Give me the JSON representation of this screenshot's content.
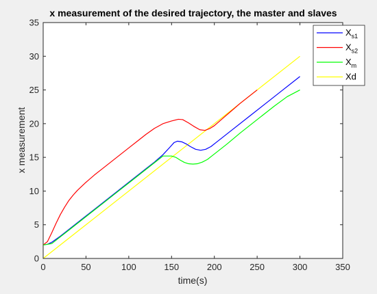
{
  "chart_data": {
    "type": "line",
    "title": "x measurement of the desired trajectory, the master and slaves",
    "xlabel": "time(s)",
    "ylabel": "x measurement",
    "xlim": [
      0,
      350
    ],
    "ylim": [
      0,
      35
    ],
    "xticks": [
      0,
      50,
      100,
      150,
      200,
      250,
      300,
      350
    ],
    "yticks": [
      0,
      5,
      10,
      15,
      20,
      25,
      30,
      35
    ],
    "grid": false,
    "legend_position": "top-right",
    "series": [
      {
        "name": "X_s1",
        "label_main": "X",
        "label_sub": "s1",
        "color": "#0000ff",
        "points": [
          [
            0,
            2
          ],
          [
            5,
            2.1
          ],
          [
            10,
            2.4
          ],
          [
            20,
            3.3
          ],
          [
            30,
            4.3
          ],
          [
            40,
            5.3
          ],
          [
            50,
            6.3
          ],
          [
            60,
            7.3
          ],
          [
            70,
            8.3
          ],
          [
            80,
            9.3
          ],
          [
            90,
            10.3
          ],
          [
            100,
            11.3
          ],
          [
            110,
            12.3
          ],
          [
            120,
            13.3
          ],
          [
            130,
            14.3
          ],
          [
            140,
            15.4
          ],
          [
            148,
            16.5
          ],
          [
            153,
            17.2
          ],
          [
            157,
            17.4
          ],
          [
            162,
            17.3
          ],
          [
            167,
            17
          ],
          [
            172,
            16.6
          ],
          [
            178,
            16.2
          ],
          [
            184,
            16.05
          ],
          [
            190,
            16.2
          ],
          [
            196,
            16.6
          ],
          [
            202,
            17.2
          ],
          [
            210,
            18
          ],
          [
            220,
            19
          ],
          [
            240,
            21
          ],
          [
            260,
            23
          ],
          [
            280,
            25
          ],
          [
            300,
            27
          ]
        ]
      },
      {
        "name": "X_s2",
        "label_main": "X",
        "label_sub": "s2",
        "color": "#ff0000",
        "points": [
          [
            0,
            2
          ],
          [
            5,
            2.5
          ],
          [
            10,
            3.8
          ],
          [
            15,
            5.2
          ],
          [
            20,
            6.5
          ],
          [
            25,
            7.6
          ],
          [
            30,
            8.6
          ],
          [
            35,
            9.4
          ],
          [
            40,
            10.1
          ],
          [
            50,
            11.3
          ],
          [
            60,
            12.4
          ],
          [
            70,
            13.4
          ],
          [
            80,
            14.4
          ],
          [
            90,
            15.4
          ],
          [
            100,
            16.4
          ],
          [
            110,
            17.4
          ],
          [
            120,
            18.4
          ],
          [
            130,
            19.3
          ],
          [
            140,
            20.0
          ],
          [
            150,
            20.4
          ],
          [
            158,
            20.65
          ],
          [
            163,
            20.6
          ],
          [
            170,
            20.1
          ],
          [
            176,
            19.6
          ],
          [
            183,
            19.1
          ],
          [
            189,
            19.0
          ],
          [
            195,
            19.3
          ],
          [
            200,
            19.7
          ],
          [
            210,
            20.8
          ],
          [
            220,
            21.9
          ],
          [
            230,
            23
          ],
          [
            240,
            24
          ],
          [
            250,
            25
          ]
        ]
      },
      {
        "name": "X_m",
        "label_main": "X",
        "label_sub": "m",
        "color": "#00ff00",
        "points": [
          [
            0,
            2
          ],
          [
            10,
            2.2
          ],
          [
            20,
            3.2
          ],
          [
            30,
            4.2
          ],
          [
            40,
            5.2
          ],
          [
            50,
            6.2
          ],
          [
            60,
            7.2
          ],
          [
            70,
            8.2
          ],
          [
            80,
            9.2
          ],
          [
            90,
            10.2
          ],
          [
            100,
            11.2
          ],
          [
            110,
            12.2
          ],
          [
            120,
            13.2
          ],
          [
            130,
            14.2
          ],
          [
            140,
            15.2
          ],
          [
            150,
            15.2
          ],
          [
            155,
            15.0
          ],
          [
            160,
            14.6
          ],
          [
            165,
            14.25
          ],
          [
            170,
            14.05
          ],
          [
            175,
            14.0
          ],
          [
            180,
            14.05
          ],
          [
            186,
            14.3
          ],
          [
            192,
            14.7
          ],
          [
            198,
            15.3
          ],
          [
            205,
            16
          ],
          [
            215,
            17
          ],
          [
            230,
            18.6
          ],
          [
            250,
            20.6
          ],
          [
            270,
            22.6
          ],
          [
            285,
            24
          ],
          [
            300,
            25
          ]
        ]
      },
      {
        "name": "Xd",
        "label_main": "Xd",
        "label_sub": "",
        "color": "#ffff00",
        "points": [
          [
            0,
            0
          ],
          [
            300,
            30
          ]
        ]
      }
    ]
  }
}
